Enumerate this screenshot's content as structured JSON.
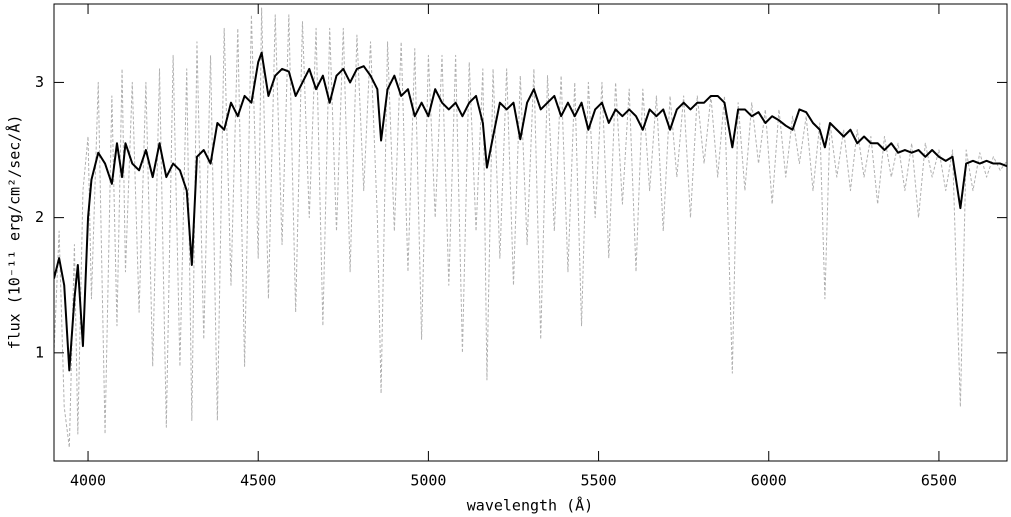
{
  "chart_data": {
    "type": "line",
    "xlabel": "wavelength (Å)",
    "ylabel": "flux (10⁻¹¹ erg/cm²/sec/Å)",
    "xlim": [
      3900,
      6700
    ],
    "ylim": [
      0.2,
      3.58
    ],
    "xticks": [
      4000,
      4500,
      5000,
      5500,
      6000,
      6500
    ],
    "yticks": [
      1,
      2,
      3
    ],
    "x": [
      3900,
      3915,
      3930,
      3945,
      3960,
      3970,
      3985,
      4000,
      4010,
      4030,
      4050,
      4070,
      4085,
      4100,
      4110,
      4130,
      4150,
      4170,
      4190,
      4210,
      4230,
      4250,
      4270,
      4290,
      4305,
      4320,
      4340,
      4360,
      4380,
      4400,
      4420,
      4440,
      4460,
      4480,
      4500,
      4510,
      4530,
      4550,
      4570,
      4590,
      4610,
      4630,
      4650,
      4670,
      4690,
      4710,
      4730,
      4750,
      4770,
      4790,
      4810,
      4830,
      4850,
      4861,
      4880,
      4900,
      4920,
      4940,
      4960,
      4980,
      5000,
      5020,
      5040,
      5060,
      5080,
      5100,
      5120,
      5140,
      5160,
      5172,
      5190,
      5210,
      5230,
      5250,
      5270,
      5290,
      5310,
      5330,
      5350,
      5370,
      5390,
      5410,
      5430,
      5450,
      5470,
      5490,
      5510,
      5530,
      5550,
      5570,
      5590,
      5610,
      5630,
      5650,
      5670,
      5690,
      5710,
      5730,
      5750,
      5770,
      5790,
      5810,
      5830,
      5850,
      5870,
      5893,
      5910,
      5930,
      5950,
      5970,
      5990,
      6010,
      6030,
      6050,
      6070,
      6090,
      6110,
      6130,
      6150,
      6165,
      6180,
      6200,
      6220,
      6240,
      6260,
      6280,
      6300,
      6320,
      6340,
      6360,
      6380,
      6400,
      6420,
      6440,
      6460,
      6480,
      6500,
      6520,
      6540,
      6563,
      6580,
      6600,
      6620,
      6640,
      6660,
      6680,
      6700
    ],
    "series": [
      {
        "color": "#b0b0b0",
        "dashed": true,
        "values": [
          1.0,
          1.9,
          0.6,
          0.3,
          1.8,
          0.4,
          2.2,
          2.6,
          1.4,
          3.0,
          0.4,
          2.9,
          1.2,
          3.1,
          1.6,
          3.0,
          1.3,
          3.0,
          0.9,
          3.1,
          0.45,
          3.2,
          0.9,
          3.1,
          0.5,
          3.3,
          1.1,
          3.2,
          0.5,
          3.4,
          1.5,
          3.4,
          0.9,
          3.5,
          1.7,
          3.55,
          1.4,
          3.5,
          1.8,
          3.5,
          1.3,
          3.45,
          2.0,
          3.4,
          1.2,
          3.4,
          1.9,
          3.4,
          1.6,
          3.35,
          2.2,
          3.3,
          2.0,
          0.7,
          3.3,
          1.9,
          3.3,
          1.6,
          3.25,
          1.1,
          3.2,
          2.0,
          3.2,
          1.5,
          3.2,
          1.0,
          3.15,
          1.9,
          3.1,
          0.8,
          3.1,
          1.7,
          3.1,
          1.5,
          3.05,
          1.8,
          3.1,
          1.1,
          3.05,
          1.9,
          3.05,
          1.6,
          3.0,
          1.2,
          3.0,
          2.0,
          3.0,
          1.7,
          3.0,
          2.1,
          2.95,
          1.6,
          2.95,
          2.2,
          2.9,
          1.9,
          2.9,
          2.3,
          2.9,
          2.0,
          2.9,
          2.4,
          2.9,
          2.3,
          2.9,
          0.85,
          2.85,
          2.2,
          2.85,
          2.4,
          2.8,
          2.1,
          2.8,
          2.3,
          2.75,
          2.4,
          2.75,
          2.2,
          2.7,
          1.4,
          2.7,
          2.3,
          2.65,
          2.2,
          2.65,
          2.3,
          2.6,
          2.1,
          2.6,
          2.3,
          2.55,
          2.2,
          2.55,
          2.0,
          2.55,
          2.3,
          2.5,
          2.2,
          2.5,
          0.6,
          2.5,
          2.2,
          2.48,
          2.3,
          2.45,
          2.35,
          2.42
        ]
      },
      {
        "color": "#000000",
        "dashed": false,
        "values": [
          1.55,
          1.7,
          1.5,
          0.87,
          1.4,
          1.65,
          1.05,
          2.0,
          2.28,
          2.48,
          2.4,
          2.25,
          2.55,
          2.3,
          2.55,
          2.4,
          2.35,
          2.5,
          2.3,
          2.55,
          2.3,
          2.4,
          2.35,
          2.2,
          1.65,
          2.45,
          2.5,
          2.4,
          2.7,
          2.65,
          2.85,
          2.75,
          2.9,
          2.85,
          3.15,
          3.22,
          2.9,
          3.05,
          3.1,
          3.08,
          2.9,
          3.0,
          3.1,
          2.95,
          3.05,
          2.85,
          3.05,
          3.1,
          3.0,
          3.1,
          3.12,
          3.05,
          2.95,
          2.57,
          2.95,
          3.05,
          2.9,
          2.95,
          2.75,
          2.85,
          2.75,
          2.95,
          2.85,
          2.8,
          2.85,
          2.75,
          2.85,
          2.9,
          2.7,
          2.37,
          2.6,
          2.85,
          2.8,
          2.85,
          2.58,
          2.85,
          2.95,
          2.8,
          2.85,
          2.9,
          2.75,
          2.85,
          2.75,
          2.85,
          2.65,
          2.8,
          2.85,
          2.7,
          2.8,
          2.75,
          2.8,
          2.75,
          2.65,
          2.8,
          2.75,
          2.8,
          2.65,
          2.8,
          2.85,
          2.8,
          2.85,
          2.85,
          2.9,
          2.9,
          2.85,
          2.52,
          2.8,
          2.8,
          2.75,
          2.78,
          2.7,
          2.75,
          2.72,
          2.68,
          2.65,
          2.8,
          2.78,
          2.7,
          2.65,
          2.52,
          2.7,
          2.65,
          2.6,
          2.65,
          2.55,
          2.6,
          2.55,
          2.55,
          2.5,
          2.55,
          2.48,
          2.5,
          2.48,
          2.5,
          2.45,
          2.5,
          2.45,
          2.42,
          2.45,
          2.07,
          2.4,
          2.42,
          2.4,
          2.42,
          2.4,
          2.4,
          2.38
        ]
      }
    ]
  }
}
